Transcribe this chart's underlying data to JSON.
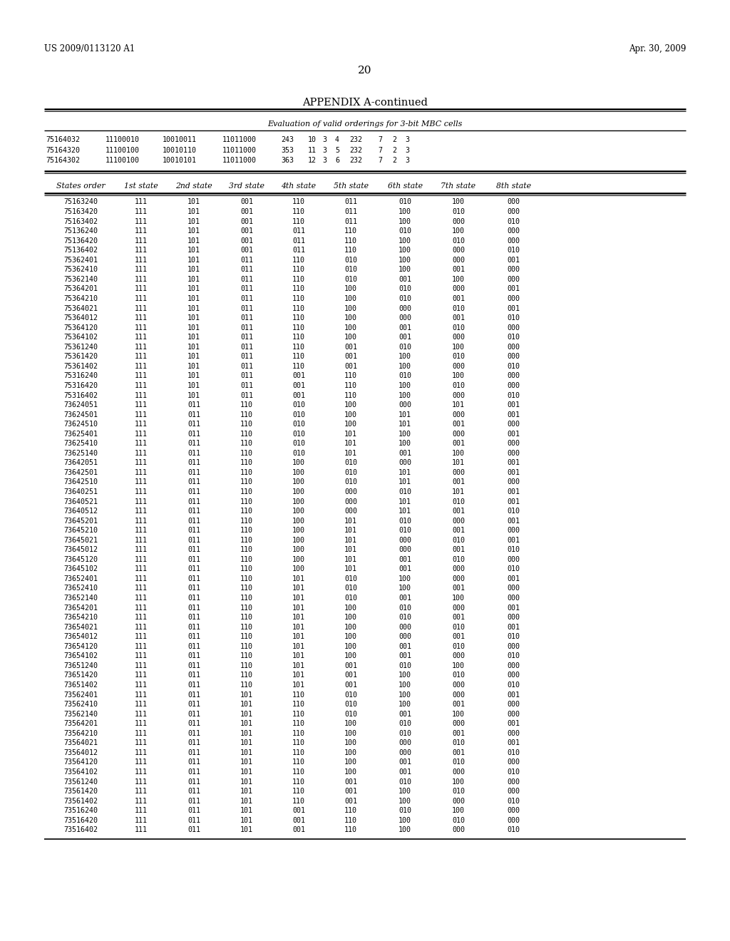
{
  "header_left": "US 2009/0113120 A1",
  "header_right": "Apr. 30, 2009",
  "page_number": "20",
  "appendix_title": "APPENDIX A-continued",
  "subtitle": "Evaluation of valid orderings for 3-bit MBC cells",
  "top_rows": [
    [
      "75164032",
      "11100010",
      "10010011",
      "11011000",
      "243",
      "10",
      "3",
      "4",
      "232",
      "7",
      "2",
      "3"
    ],
    [
      "75164320",
      "11100100",
      "10010110",
      "11011000",
      "353",
      "11",
      "3",
      "5",
      "232",
      "7",
      "2",
      "3"
    ],
    [
      "75164302",
      "11100100",
      "10010101",
      "11011000",
      "363",
      "12",
      "3",
      "6",
      "232",
      "7",
      "2",
      "3"
    ]
  ],
  "col_headers": [
    "States order",
    "1st state",
    "2nd state",
    "3rd state",
    "4th state",
    "5th state",
    "6th state",
    "7th state",
    "8th state"
  ],
  "data_rows": [
    [
      "75163240",
      "111",
      "101",
      "001",
      "110",
      "011",
      "010",
      "100",
      "000"
    ],
    [
      "75163420",
      "111",
      "101",
      "001",
      "110",
      "011",
      "100",
      "010",
      "000"
    ],
    [
      "75163402",
      "111",
      "101",
      "001",
      "110",
      "011",
      "100",
      "000",
      "010"
    ],
    [
      "75136240",
      "111",
      "101",
      "001",
      "011",
      "110",
      "010",
      "100",
      "000"
    ],
    [
      "75136420",
      "111",
      "101",
      "001",
      "011",
      "110",
      "100",
      "010",
      "000"
    ],
    [
      "75136402",
      "111",
      "101",
      "001",
      "011",
      "110",
      "100",
      "000",
      "010"
    ],
    [
      "75362401",
      "111",
      "101",
      "011",
      "110",
      "010",
      "100",
      "000",
      "001"
    ],
    [
      "75362410",
      "111",
      "101",
      "011",
      "110",
      "010",
      "100",
      "001",
      "000"
    ],
    [
      "75362140",
      "111",
      "101",
      "011",
      "110",
      "010",
      "001",
      "100",
      "000"
    ],
    [
      "75364201",
      "111",
      "101",
      "011",
      "110",
      "100",
      "010",
      "000",
      "001"
    ],
    [
      "75364210",
      "111",
      "101",
      "011",
      "110",
      "100",
      "010",
      "001",
      "000"
    ],
    [
      "75364021",
      "111",
      "101",
      "011",
      "110",
      "100",
      "000",
      "010",
      "001"
    ],
    [
      "75364012",
      "111",
      "101",
      "011",
      "110",
      "100",
      "000",
      "001",
      "010"
    ],
    [
      "75364120",
      "111",
      "101",
      "011",
      "110",
      "100",
      "001",
      "010",
      "000"
    ],
    [
      "75364102",
      "111",
      "101",
      "011",
      "110",
      "100",
      "001",
      "000",
      "010"
    ],
    [
      "75361240",
      "111",
      "101",
      "011",
      "110",
      "001",
      "010",
      "100",
      "000"
    ],
    [
      "75361420",
      "111",
      "101",
      "011",
      "110",
      "001",
      "100",
      "010",
      "000"
    ],
    [
      "75361402",
      "111",
      "101",
      "011",
      "110",
      "001",
      "100",
      "000",
      "010"
    ],
    [
      "75316240",
      "111",
      "101",
      "011",
      "001",
      "110",
      "010",
      "100",
      "000"
    ],
    [
      "75316420",
      "111",
      "101",
      "011",
      "001",
      "110",
      "100",
      "010",
      "000"
    ],
    [
      "75316402",
      "111",
      "101",
      "011",
      "001",
      "110",
      "100",
      "000",
      "010"
    ],
    [
      "73624051",
      "111",
      "011",
      "110",
      "010",
      "100",
      "000",
      "101",
      "001"
    ],
    [
      "73624501",
      "111",
      "011",
      "110",
      "010",
      "100",
      "101",
      "000",
      "001"
    ],
    [
      "73624510",
      "111",
      "011",
      "110",
      "010",
      "100",
      "101",
      "001",
      "000"
    ],
    [
      "73625401",
      "111",
      "011",
      "110",
      "010",
      "101",
      "100",
      "000",
      "001"
    ],
    [
      "73625410",
      "111",
      "011",
      "110",
      "010",
      "101",
      "100",
      "001",
      "000"
    ],
    [
      "73625140",
      "111",
      "011",
      "110",
      "010",
      "101",
      "001",
      "100",
      "000"
    ],
    [
      "73642051",
      "111",
      "011",
      "110",
      "100",
      "010",
      "000",
      "101",
      "001"
    ],
    [
      "73642501",
      "111",
      "011",
      "110",
      "100",
      "010",
      "101",
      "000",
      "001"
    ],
    [
      "73642510",
      "111",
      "011",
      "110",
      "100",
      "010",
      "101",
      "001",
      "000"
    ],
    [
      "73640251",
      "111",
      "011",
      "110",
      "100",
      "000",
      "010",
      "101",
      "001"
    ],
    [
      "73640521",
      "111",
      "011",
      "110",
      "100",
      "000",
      "101",
      "010",
      "001"
    ],
    [
      "73640512",
      "111",
      "011",
      "110",
      "100",
      "000",
      "101",
      "001",
      "010"
    ],
    [
      "73645201",
      "111",
      "011",
      "110",
      "100",
      "101",
      "010",
      "000",
      "001"
    ],
    [
      "73645210",
      "111",
      "011",
      "110",
      "100",
      "101",
      "010",
      "001",
      "000"
    ],
    [
      "73645021",
      "111",
      "011",
      "110",
      "100",
      "101",
      "000",
      "010",
      "001"
    ],
    [
      "73645012",
      "111",
      "011",
      "110",
      "100",
      "101",
      "000",
      "001",
      "010"
    ],
    [
      "73645120",
      "111",
      "011",
      "110",
      "100",
      "101",
      "001",
      "010",
      "000"
    ],
    [
      "73645102",
      "111",
      "011",
      "110",
      "100",
      "101",
      "001",
      "000",
      "010"
    ],
    [
      "73652401",
      "111",
      "011",
      "110",
      "101",
      "010",
      "100",
      "000",
      "001"
    ],
    [
      "73652410",
      "111",
      "011",
      "110",
      "101",
      "010",
      "100",
      "001",
      "000"
    ],
    [
      "73652140",
      "111",
      "011",
      "110",
      "101",
      "010",
      "001",
      "100",
      "000"
    ],
    [
      "73654201",
      "111",
      "011",
      "110",
      "101",
      "100",
      "010",
      "000",
      "001"
    ],
    [
      "73654210",
      "111",
      "011",
      "110",
      "101",
      "100",
      "010",
      "001",
      "000"
    ],
    [
      "73654021",
      "111",
      "011",
      "110",
      "101",
      "100",
      "000",
      "010",
      "001"
    ],
    [
      "73654012",
      "111",
      "011",
      "110",
      "101",
      "100",
      "000",
      "001",
      "010"
    ],
    [
      "73654120",
      "111",
      "011",
      "110",
      "101",
      "100",
      "001",
      "010",
      "000"
    ],
    [
      "73654102",
      "111",
      "011",
      "110",
      "101",
      "100",
      "001",
      "000",
      "010"
    ],
    [
      "73651240",
      "111",
      "011",
      "110",
      "101",
      "001",
      "010",
      "100",
      "000"
    ],
    [
      "73651420",
      "111",
      "011",
      "110",
      "101",
      "001",
      "100",
      "010",
      "000"
    ],
    [
      "73651402",
      "111",
      "011",
      "110",
      "101",
      "001",
      "100",
      "000",
      "010"
    ],
    [
      "73562401",
      "111",
      "011",
      "101",
      "110",
      "010",
      "100",
      "000",
      "001"
    ],
    [
      "73562410",
      "111",
      "011",
      "101",
      "110",
      "010",
      "100",
      "001",
      "000"
    ],
    [
      "73562140",
      "111",
      "011",
      "101",
      "110",
      "010",
      "001",
      "100",
      "000"
    ],
    [
      "73564201",
      "111",
      "011",
      "101",
      "110",
      "100",
      "010",
      "000",
      "001"
    ],
    [
      "73564210",
      "111",
      "011",
      "101",
      "110",
      "100",
      "010",
      "001",
      "000"
    ],
    [
      "73564021",
      "111",
      "011",
      "101",
      "110",
      "100",
      "000",
      "010",
      "001"
    ],
    [
      "73564012",
      "111",
      "011",
      "101",
      "110",
      "100",
      "000",
      "001",
      "010"
    ],
    [
      "73564120",
      "111",
      "011",
      "101",
      "110",
      "100",
      "001",
      "010",
      "000"
    ],
    [
      "73564102",
      "111",
      "011",
      "101",
      "110",
      "100",
      "001",
      "000",
      "010"
    ],
    [
      "73561240",
      "111",
      "011",
      "101",
      "110",
      "001",
      "010",
      "100",
      "000"
    ],
    [
      "73561420",
      "111",
      "011",
      "101",
      "110",
      "001",
      "100",
      "010",
      "000"
    ],
    [
      "73561402",
      "111",
      "011",
      "101",
      "110",
      "001",
      "100",
      "000",
      "010"
    ],
    [
      "73516240",
      "111",
      "011",
      "101",
      "001",
      "110",
      "010",
      "100",
      "000"
    ],
    [
      "73516420",
      "111",
      "011",
      "101",
      "001",
      "110",
      "100",
      "010",
      "000"
    ],
    [
      "73516402",
      "111",
      "011",
      "101",
      "001",
      "110",
      "100",
      "000",
      "010"
    ]
  ],
  "bg_color": "#ffffff",
  "text_color": "#000000"
}
